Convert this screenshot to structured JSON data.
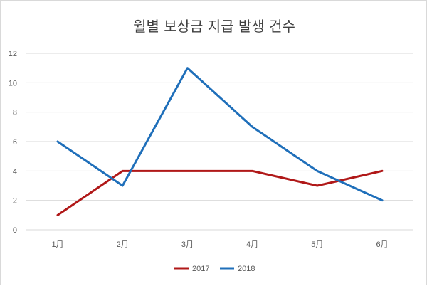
{
  "chart_data": {
    "type": "line",
    "title": "월별 보상금 지급 발생 건수",
    "categories": [
      "1月",
      "2月",
      "3月",
      "4月",
      "5月",
      "6月"
    ],
    "series": [
      {
        "name": "2017",
        "values": [
          1,
          4,
          4,
          4,
          3,
          4
        ],
        "color": "#b01818"
      },
      {
        "name": "2018",
        "values": [
          6,
          3,
          11,
          7,
          4,
          2
        ],
        "color": "#1f6fba"
      }
    ],
    "ylim": [
      0,
      12
    ],
    "yticks": [
      "0",
      "2",
      "4",
      "6",
      "8",
      "10",
      "12"
    ],
    "grid": true,
    "legend": "bottom",
    "gridline_color": "#d9d9d9"
  }
}
